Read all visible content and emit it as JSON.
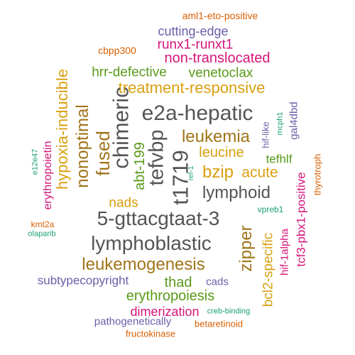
{
  "palette": {
    "gray": "#555555",
    "orange": "#d95f02",
    "purple": "#6a5fa8",
    "magenta": "#d4157a",
    "green": "#5a9a1a",
    "gold": "#d9a010",
    "brown": "#a0741a",
    "teal": "#1b9e77"
  },
  "words": [
    {
      "text": "aml1-eto-positive",
      "color": "orange"
    },
    {
      "text": "cutting-edge",
      "color": "purple"
    },
    {
      "text": "runx1-runxt1",
      "color": "magenta"
    },
    {
      "text": "cbpp300",
      "color": "orange"
    },
    {
      "text": "non-translocated",
      "color": "magenta"
    },
    {
      "text": "hrr-defective",
      "color": "green"
    },
    {
      "text": "venetoclax",
      "color": "green"
    },
    {
      "text": "hypoxia-inducible",
      "color": "gold"
    },
    {
      "text": "treatment-responsive",
      "color": "gold"
    },
    {
      "text": "nonoptimal",
      "color": "brown"
    },
    {
      "text": "chimeric",
      "color": "gray"
    },
    {
      "text": "e2a-hepatic",
      "color": "gray"
    },
    {
      "text": "mcph1",
      "color": "teal"
    },
    {
      "text": "gal4dbd",
      "color": "purple"
    },
    {
      "text": "hif-like",
      "color": "purple"
    },
    {
      "text": "fused",
      "color": "brown"
    },
    {
      "text": "tefvbp",
      "color": "gray"
    },
    {
      "text": "leukemia",
      "color": "brown"
    },
    {
      "text": "erythropoietin",
      "color": "magenta"
    },
    {
      "text": "e12e47",
      "color": "teal"
    },
    {
      "text": "abt-199",
      "color": "green"
    },
    {
      "text": "t1719",
      "color": "gray"
    },
    {
      "text": "leucine",
      "color": "gold"
    },
    {
      "text": "tefhlf",
      "color": "green"
    },
    {
      "text": "bzip",
      "color": "gold"
    },
    {
      "text": "acute",
      "color": "gold"
    },
    {
      "text": "ref-1",
      "color": "teal"
    },
    {
      "text": "thyrotroph",
      "color": "orange"
    },
    {
      "text": "lymphoid",
      "color": "gray"
    },
    {
      "text": "nads",
      "color": "gold"
    },
    {
      "text": "tcf3-pbx1-positive",
      "color": "magenta"
    },
    {
      "text": "vpreb1",
      "color": "teal"
    },
    {
      "text": "5-gttacgtaat-3",
      "color": "gray"
    },
    {
      "text": "kmt2a",
      "color": "orange"
    },
    {
      "text": "olaparib",
      "color": "teal"
    },
    {
      "text": "zipper",
      "color": "brown"
    },
    {
      "text": "lymphoblastic",
      "color": "gray"
    },
    {
      "text": "bcl2-specific",
      "color": "gold"
    },
    {
      "text": "hif-1alpha",
      "color": "magenta"
    },
    {
      "text": "leukemogenesis",
      "color": "brown"
    },
    {
      "text": "subtypecopyright",
      "color": "purple"
    },
    {
      "text": "thad",
      "color": "green"
    },
    {
      "text": "cads",
      "color": "purple"
    },
    {
      "text": "erythropoiesis",
      "color": "green"
    },
    {
      "text": "dimerization",
      "color": "magenta"
    },
    {
      "text": "creb-binding",
      "color": "teal"
    },
    {
      "text": "pathogenetically",
      "color": "purple"
    },
    {
      "text": "betaretinoid",
      "color": "orange"
    },
    {
      "text": "fructokinase",
      "color": "orange"
    }
  ]
}
